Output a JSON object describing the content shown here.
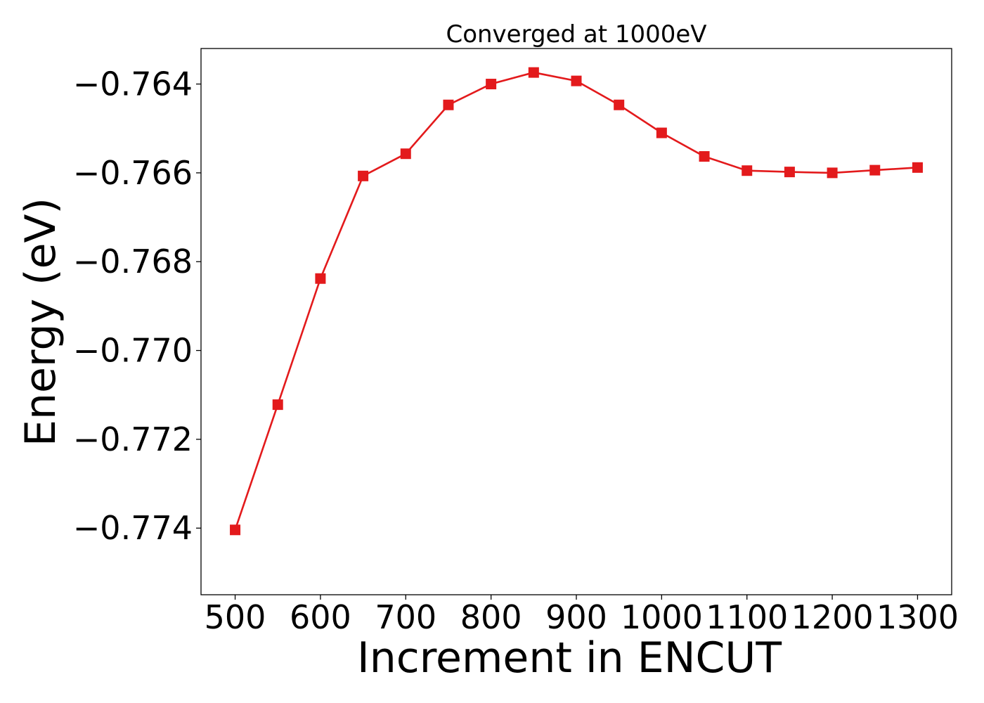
{
  "chart_data": {
    "type": "line",
    "title": "Converged at 1000eV",
    "xlabel": "Increment in ENCUT",
    "ylabel": "Energy (eV)",
    "xlim": [
      460,
      1340
    ],
    "ylim": [
      -0.7755,
      -0.7632
    ],
    "x_ticks": [
      500,
      600,
      700,
      800,
      900,
      1000,
      1100,
      1200,
      1300
    ],
    "x_tick_labels": [
      "500",
      "600",
      "700",
      "800",
      "900",
      "1000",
      "1100",
      "1200",
      "1300"
    ],
    "y_ticks": [
      -0.764,
      -0.766,
      -0.768,
      -0.77,
      -0.772,
      -0.774
    ],
    "y_tick_labels": [
      "−0.764",
      "−0.766",
      "−0.768",
      "−0.770",
      "−0.772",
      "−0.774"
    ],
    "grid": false,
    "series": [
      {
        "color": "#e31a1c",
        "marker": "square",
        "x": [
          500,
          550,
          600,
          650,
          700,
          750,
          800,
          850,
          900,
          950,
          1000,
          1050,
          1100,
          1150,
          1200,
          1250,
          1300
        ],
        "y": [
          -0.77404,
          -0.77122,
          -0.76838,
          -0.76607,
          -0.76557,
          -0.76447,
          -0.764,
          -0.76374,
          -0.76393,
          -0.76447,
          -0.7651,
          -0.76563,
          -0.76595,
          -0.76598,
          -0.766,
          -0.76594,
          -0.76588
        ]
      }
    ]
  }
}
